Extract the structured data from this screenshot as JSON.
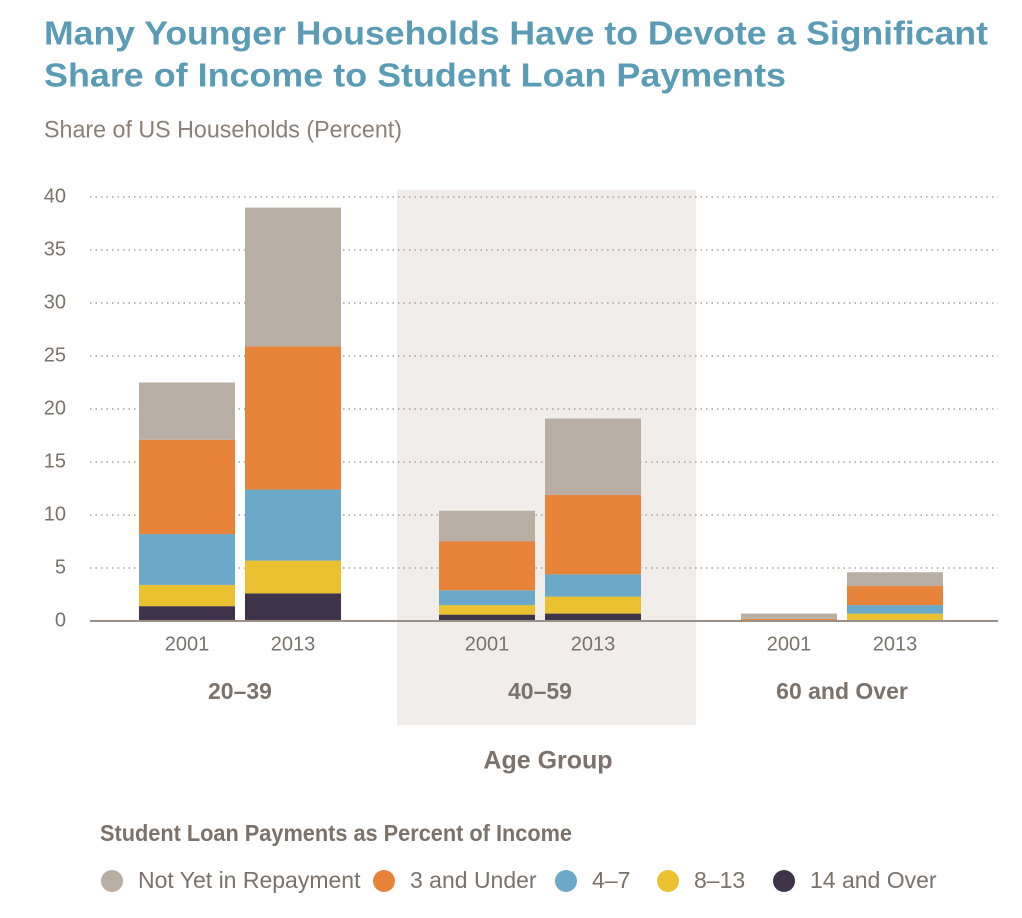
{
  "chart_data": {
    "type": "stacked_bar",
    "title": [
      "Many Younger Households Have to Devote a Significant",
      "Share of Income to Student Loan Payments"
    ],
    "subtitle": "Share of US Households (Percent)",
    "categories": [
      "2001",
      "2013",
      "2001",
      "2013",
      "2001",
      "2013"
    ],
    "groups": [
      "20–39",
      "40–59",
      "60 and Over"
    ],
    "x_label": "Age Group",
    "legend_title": "Student Loan Payments as Percent of Income",
    "series": [
      {
        "name": "Not Yet in Repayment",
        "color": "#b8aea4",
        "values": [
          5.4,
          13.1,
          2.9,
          7.2,
          0.5,
          1.3
        ]
      },
      {
        "name": "3 and Under",
        "color": "#e8833a",
        "values": [
          8.9,
          13.5,
          4.6,
          7.5,
          0.2,
          1.8
        ]
      },
      {
        "name": "4–7",
        "color": "#6aa9c8",
        "values": [
          4.8,
          6.7,
          1.4,
          2.1,
          0,
          0.8
        ]
      },
      {
        "name": "8–13",
        "color": "#ebc131",
        "values": [
          2.0,
          3.1,
          0.9,
          1.6,
          0,
          0.6
        ]
      },
      {
        "name": "14 and Over",
        "color": "#3e3349",
        "values": [
          1.4,
          2.6,
          0.6,
          0.7,
          0,
          0.1
        ]
      }
    ],
    "ylim": [
      0,
      40
    ],
    "yticks": [
      0,
      5,
      10,
      15,
      20,
      25,
      30,
      35,
      40
    ],
    "grid": true
  }
}
